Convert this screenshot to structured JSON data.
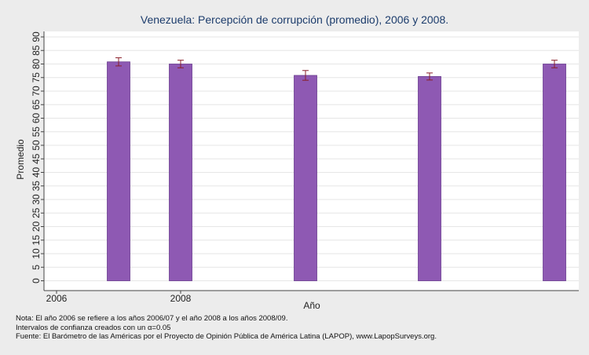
{
  "chart_data": {
    "type": "bar",
    "title": "Venezuela: Percepción de corrupción (promedio), 2006 y 2008.",
    "xlabel": "Año",
    "ylabel": "Promedio",
    "ylim": [
      0,
      90
    ],
    "y_ticks": [
      0,
      5,
      10,
      15,
      20,
      25,
      30,
      35,
      40,
      45,
      50,
      55,
      60,
      65,
      70,
      75,
      80,
      85,
      90
    ],
    "x_tick_labels": [
      "2006",
      "2008"
    ],
    "x_tick_at_bar": [
      0,
      1
    ],
    "grid": true,
    "bar_color": "#8e59b3",
    "error_bar_color": "#8a1f2a",
    "bars": [
      {
        "value": 80.8,
        "ci_low": 79.3,
        "ci_high": 82.3
      },
      {
        "value": 80.0,
        "ci_low": 78.6,
        "ci_high": 81.4
      },
      {
        "value": 75.8,
        "ci_low": 74.0,
        "ci_high": 77.6
      },
      {
        "value": 75.4,
        "ci_low": 74.1,
        "ci_high": 76.7
      },
      {
        "value": 80.0,
        "ci_low": 78.6,
        "ci_high": 81.4
      }
    ]
  },
  "notes": {
    "line1": "Nota: El año 2006 se refiere a los años 2006/07 y el año 2008 a los años 2008/09.",
    "line2": "Intervalos de confianza creados con un α=0.05",
    "line3": "Fuente: El Barómetro de las Américas por el Proyecto de Opinión Pública de América Latina (LAPOP), www.LapopSurveys.org."
  }
}
